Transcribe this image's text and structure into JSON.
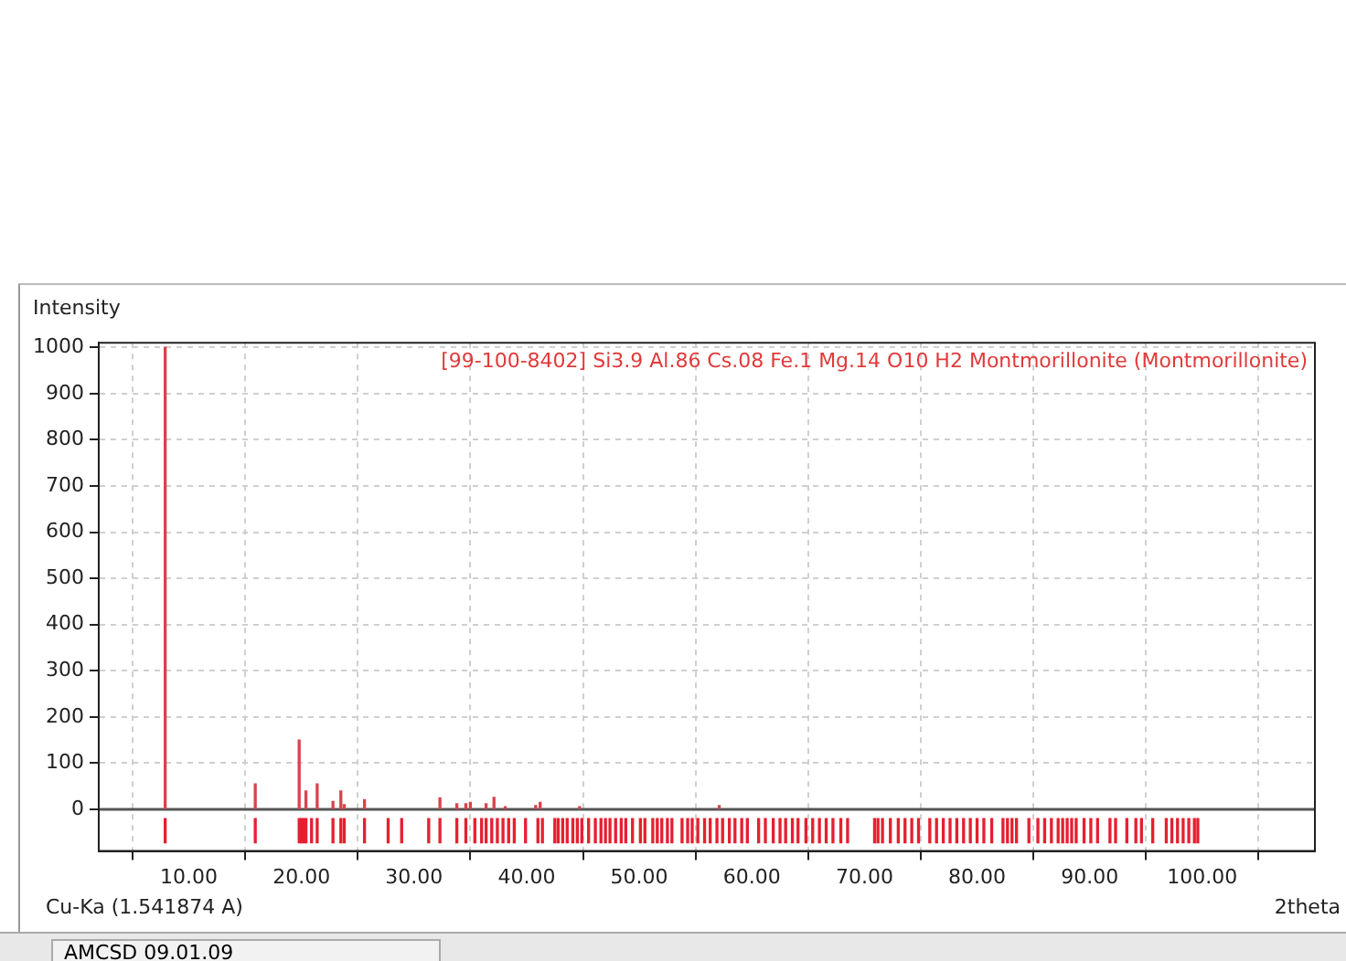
{
  "chart_data": {
    "type": "bar",
    "title": "[99-100-8402] Si3.9 Al.86 Cs.08 Fe.1 Mg.14 O10 H2 Montmorillonite (Montmorillonite)",
    "ylabel": "Intensity",
    "xlabel": "2theta",
    "annotations": [
      "Cu-Ka (1.541874 A)",
      "AMCSD 09.01.09"
    ],
    "xlim": [
      2,
      110
    ],
    "xticks": [
      {
        "value": 10,
        "label": "10.00"
      },
      {
        "value": 20,
        "label": "20.00"
      },
      {
        "value": 30,
        "label": "30.00"
      },
      {
        "value": 40,
        "label": "40.00"
      },
      {
        "value": 50,
        "label": "50.00"
      },
      {
        "value": 60,
        "label": "60.00"
      },
      {
        "value": 70,
        "label": "70.00"
      },
      {
        "value": 80,
        "label": "80.00"
      },
      {
        "value": 90,
        "label": "90.00"
      },
      {
        "value": 100,
        "label": "100.00"
      }
    ],
    "ylim": [
      -90,
      1010
    ],
    "yticks": [
      0,
      100,
      200,
      300,
      400,
      500,
      600,
      700,
      800,
      900,
      1000
    ],
    "grid": true,
    "ref_lines": [
      {
        "axis": "y",
        "value": 0,
        "color": "#555555"
      }
    ],
    "series": [
      {
        "color": "#d9434b",
        "x": [
          7.9,
          15.9,
          19.8,
          20.4,
          21.4,
          22.8,
          23.5,
          23.8,
          25.6,
          32.3,
          33.8,
          34.6,
          35.0,
          36.4,
          37.1,
          38.1,
          40.8,
          41.2,
          44.7,
          57.1
        ],
        "values": [
          1000,
          55,
          150,
          40,
          55,
          17,
          40,
          10,
          21,
          25,
          12,
          12,
          15,
          12,
          26,
          6,
          8,
          15,
          6,
          8
        ]
      },
      {
        "color": "#e52030",
        "base": [
          -72,
          -72,
          -72,
          -72,
          -72,
          -72,
          -72,
          -72,
          -72,
          -72,
          -72,
          -72,
          -72,
          -72,
          -72,
          -72,
          -72,
          -72,
          -72,
          -72,
          -72,
          -72,
          -72,
          -72,
          -72,
          -72,
          -72,
          -72,
          -72,
          -72,
          -72,
          -72,
          -72,
          -72,
          -72,
          -72,
          -72,
          -72,
          -72,
          -72,
          -72,
          -72,
          -72,
          -72,
          -72,
          -72,
          -72,
          -72,
          -72,
          -72,
          -72,
          -72,
          -72,
          -72,
          -72,
          -72,
          -72,
          -72,
          -72,
          -72,
          -72,
          -72,
          -72,
          -72,
          -72,
          -72,
          -72,
          -72,
          -72,
          -72,
          -72,
          -72,
          -72,
          -72,
          -72,
          -72,
          -72,
          -72,
          -72,
          -72,
          -72,
          -72,
          -72,
          -72,
          -72,
          -72,
          -72,
          -72,
          -72,
          -72,
          -72,
          -72,
          -72,
          -72,
          -72,
          -72,
          -72,
          -72,
          -72,
          -72,
          -72,
          -72,
          -72,
          -72,
          -72,
          -72,
          -72,
          -72,
          -72,
          -72,
          -72,
          -72,
          -72,
          -72,
          -72,
          -72,
          -72,
          -72,
          -72,
          -72,
          -72,
          -72,
          -72,
          -72,
          -72
        ],
        "x": [
          7.9,
          15.9,
          19.8,
          20.0,
          20.2,
          20.4,
          20.9,
          21.4,
          22.8,
          23.5,
          23.8,
          25.6,
          27.7,
          28.9,
          31.3,
          32.3,
          33.8,
          34.6,
          35.4,
          36.0,
          36.4,
          36.9,
          37.4,
          37.9,
          38.4,
          38.9,
          39.9,
          41.0,
          41.4,
          42.5,
          42.8,
          43.2,
          43.6,
          44.1,
          44.5,
          44.9,
          45.5,
          46.1,
          46.6,
          47.0,
          47.4,
          47.9,
          48.4,
          48.8,
          49.4,
          50.1,
          50.5,
          51.2,
          51.6,
          52.0,
          52.5,
          52.9,
          53.8,
          54.3,
          54.7,
          55.2,
          55.8,
          56.3,
          56.9,
          57.4,
          58.0,
          58.5,
          59.1,
          59.6,
          60.6,
          61.2,
          61.9,
          62.5,
          63.0,
          63.6,
          64.1,
          64.8,
          65.4,
          66.0,
          66.6,
          67.2,
          67.9,
          68.5,
          70.9,
          71.2,
          71.6,
          72.3,
          73.0,
          73.6,
          74.2,
          74.8,
          75.8,
          76.4,
          77.0,
          77.6,
          78.2,
          78.8,
          79.4,
          80.0,
          80.6,
          81.3,
          82.3,
          82.7,
          83.1,
          83.5,
          84.6,
          85.4,
          86.0,
          86.6,
          87.2,
          87.6,
          88.0,
          88.4,
          88.8,
          89.5,
          90.1,
          90.7,
          91.8,
          92.3,
          93.3,
          94.1,
          94.6,
          95.6,
          96.8,
          97.3,
          97.8,
          98.3,
          98.8,
          99.3,
          99.6
        ],
        "values": [
          52,
          52,
          52,
          52,
          52,
          52,
          52,
          52,
          52,
          52,
          52,
          52,
          52,
          52,
          52,
          52,
          52,
          52,
          52,
          52,
          52,
          52,
          52,
          52,
          52,
          52,
          52,
          52,
          52,
          52,
          52,
          52,
          52,
          52,
          52,
          52,
          52,
          52,
          52,
          52,
          52,
          52,
          52,
          52,
          52,
          52,
          52,
          52,
          52,
          52,
          52,
          52,
          52,
          52,
          52,
          52,
          52,
          52,
          52,
          52,
          52,
          52,
          52,
          52,
          52,
          52,
          52,
          52,
          52,
          52,
          52,
          52,
          52,
          52,
          52,
          52,
          52,
          52,
          52,
          52,
          52,
          52,
          52,
          52,
          52,
          52,
          52,
          52,
          52,
          52,
          52,
          52,
          52,
          52,
          52,
          52,
          52,
          52,
          52,
          52,
          52,
          52,
          52,
          52,
          52,
          52,
          52,
          52,
          52,
          52,
          52,
          52,
          52,
          52,
          52,
          52,
          52,
          52,
          52,
          52,
          52,
          52,
          52,
          52,
          52
        ]
      }
    ]
  }
}
